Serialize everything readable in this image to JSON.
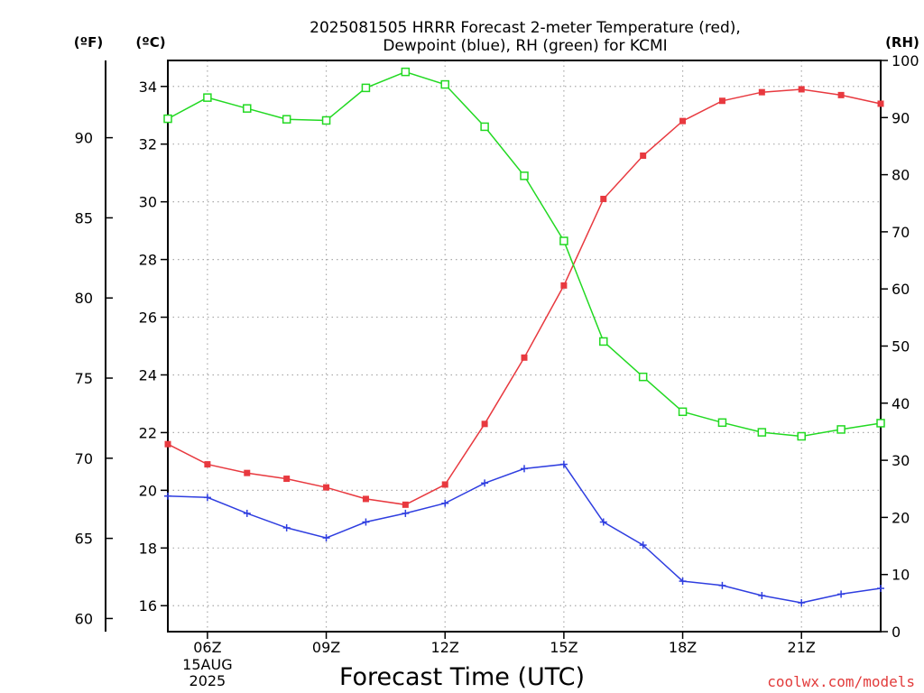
{
  "title_line1": "2025081505 HRRR Forecast 2-meter Temperature (red),",
  "title_line2": "Dewpoint (blue), RH (green) for KCMI",
  "axis_unit_f": "(ºF)",
  "axis_unit_c": "(ºC)",
  "axis_unit_rh": "(RH)",
  "xlabel": "Forecast Time (UTC)",
  "credit": "coolwx.com/models",
  "colors": {
    "temperature": "#e8393f",
    "dewpoint": "#2f3ee0",
    "rh": "#22d922",
    "grid": "#aaaaaa"
  },
  "chart_data": {
    "type": "line",
    "title": "2025081505 HRRR Forecast 2-meter Temperature (red), Dewpoint (blue), RH (green) for KCMI",
    "xlabel": "Forecast Time (UTC)",
    "x_hours": [
      5,
      6,
      7,
      8,
      9,
      10,
      11,
      12,
      13,
      14,
      15,
      16,
      17,
      18,
      19,
      20,
      21,
      22,
      23
    ],
    "xlim": [
      5,
      23
    ],
    "x_ticks": [
      {
        "hour": 6,
        "label": "06Z",
        "sub1": "15AUG",
        "sub2": "2025"
      },
      {
        "hour": 9,
        "label": "09Z"
      },
      {
        "hour": 12,
        "label": "12Z"
      },
      {
        "hour": 15,
        "label": "15Z"
      },
      {
        "hour": 18,
        "label": "18Z"
      },
      {
        "hour": 21,
        "label": "21Z"
      }
    ],
    "celsius_axis": {
      "label": "(ºC)",
      "lim": [
        15.1,
        34.9
      ],
      "ticks": [
        16,
        18,
        20,
        22,
        24,
        26,
        28,
        30,
        32,
        34
      ]
    },
    "fahrenheit_axis": {
      "label": "(ºF)",
      "ticks": [
        60,
        65,
        70,
        75,
        80,
        85,
        90
      ]
    },
    "rh_axis": {
      "label": "(RH)",
      "lim": [
        0,
        100
      ],
      "ticks": [
        0,
        10,
        20,
        30,
        40,
        50,
        60,
        70,
        80,
        90,
        100
      ]
    },
    "series": [
      {
        "name": "Temperature",
        "unit": "C",
        "color": "#e8393f",
        "marker": "square-filled",
        "values": [
          21.6,
          20.9,
          20.6,
          20.4,
          20.1,
          19.7,
          19.5,
          20.2,
          22.3,
          24.6,
          27.1,
          30.1,
          31.6,
          32.8,
          33.5,
          33.8,
          33.9,
          33.7,
          33.4
        ]
      },
      {
        "name": "Dewpoint",
        "unit": "C",
        "color": "#2f3ee0",
        "marker": "plus",
        "values": [
          19.8,
          19.75,
          19.2,
          18.7,
          18.35,
          18.9,
          19.2,
          19.55,
          20.25,
          20.75,
          20.9,
          18.9,
          18.1,
          16.85,
          16.7,
          16.35,
          16.1,
          16.4,
          16.6
        ]
      },
      {
        "name": "RH",
        "unit": "%",
        "color": "#22d922",
        "marker": "square-open",
        "values": [
          89.8,
          93.5,
          91.6,
          89.7,
          89.5,
          95.2,
          98.0,
          95.8,
          88.4,
          79.8,
          68.4,
          50.8,
          44.6,
          38.5,
          36.6,
          34.9,
          34.2,
          35.4,
          36.5
        ]
      }
    ]
  }
}
